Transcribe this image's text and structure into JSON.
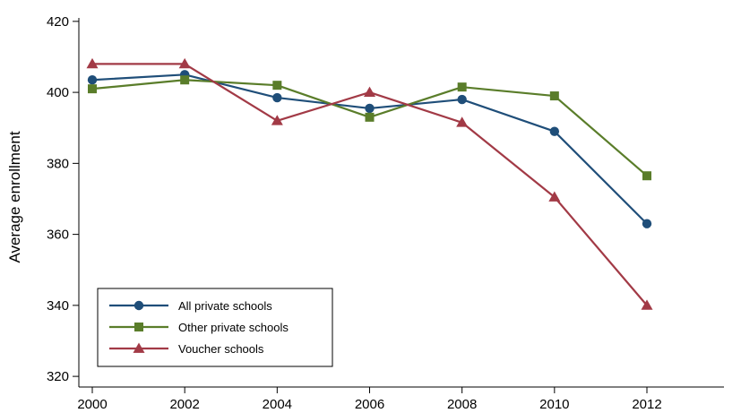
{
  "chart_data": {
    "type": "line",
    "title": "",
    "xlabel": "",
    "ylabel": "Average enrollment",
    "x": [
      2000,
      2002,
      2004,
      2006,
      2008,
      2010,
      2012
    ],
    "xticks": [
      "2000",
      "2002",
      "2004",
      "2006",
      "2008",
      "2010",
      "2012"
    ],
    "yticks": [
      "320",
      "340",
      "360",
      "380",
      "400",
      "420"
    ],
    "ylim": [
      317,
      424
    ],
    "xlim": [
      2000,
      2012
    ],
    "grid": false,
    "legend": "bottom-left",
    "series": [
      {
        "name": "All private schools",
        "values": [
          403.5,
          405.0,
          398.5,
          395.5,
          398.0,
          389.0,
          363.0
        ],
        "color": "#1f4e79",
        "marker": "circle"
      },
      {
        "name": "Other private schools",
        "values": [
          401.0,
          403.5,
          402.0,
          393.0,
          401.5,
          399.0,
          376.5
        ],
        "color": "#5a7d2a",
        "marker": "square"
      },
      {
        "name": "Voucher schools",
        "values": [
          408.0,
          408.0,
          392.0,
          400.0,
          391.5,
          370.5,
          340.0
        ],
        "color": "#a23a46",
        "marker": "triangle"
      }
    ]
  }
}
